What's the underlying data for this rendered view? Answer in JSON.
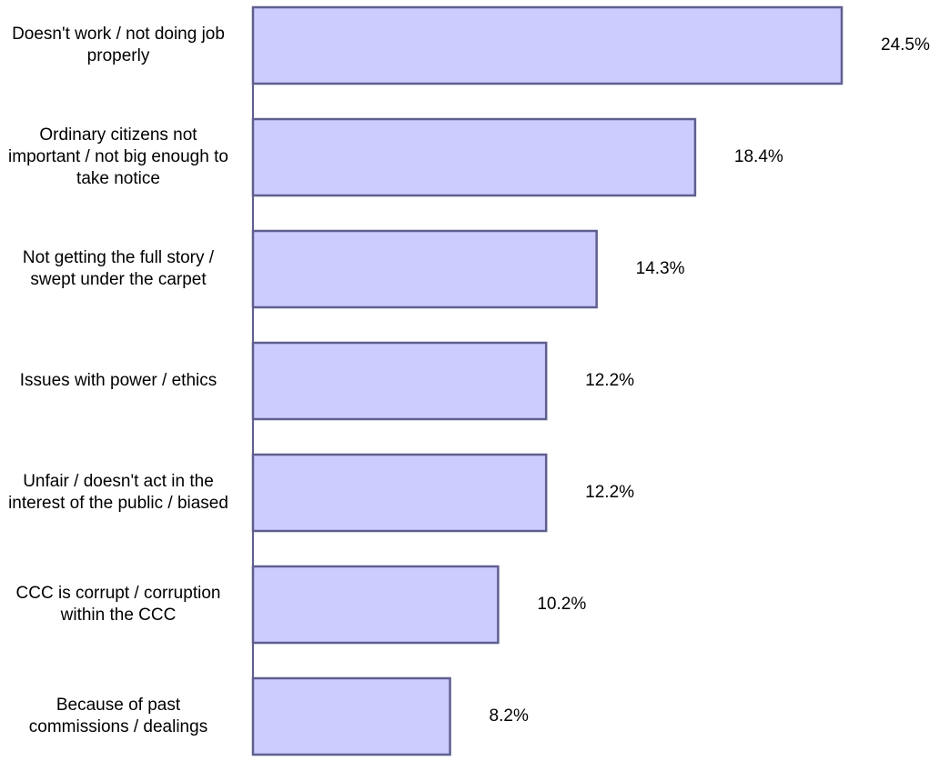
{
  "chart_data": {
    "type": "bar",
    "orientation": "horizontal",
    "categories": [
      "Doesn't work / not doing job properly",
      "Ordinary citizens not important / not big enough to take notice",
      "Not getting the full story / swept under the carpet",
      "Issues with power / ethics",
      "Unfair / doesn't act in the interest of the public / biased",
      "CCC is corrupt / corruption within the CCC",
      "Because of past commissions / dealings"
    ],
    "values": [
      24.5,
      18.4,
      14.3,
      12.2,
      12.2,
      10.2,
      8.2
    ],
    "value_labels": [
      "24.5%",
      "18.4%",
      "14.3%",
      "12.2%",
      "12.2%",
      "10.2%",
      "8.2%"
    ],
    "color": "#ccccff"
  }
}
